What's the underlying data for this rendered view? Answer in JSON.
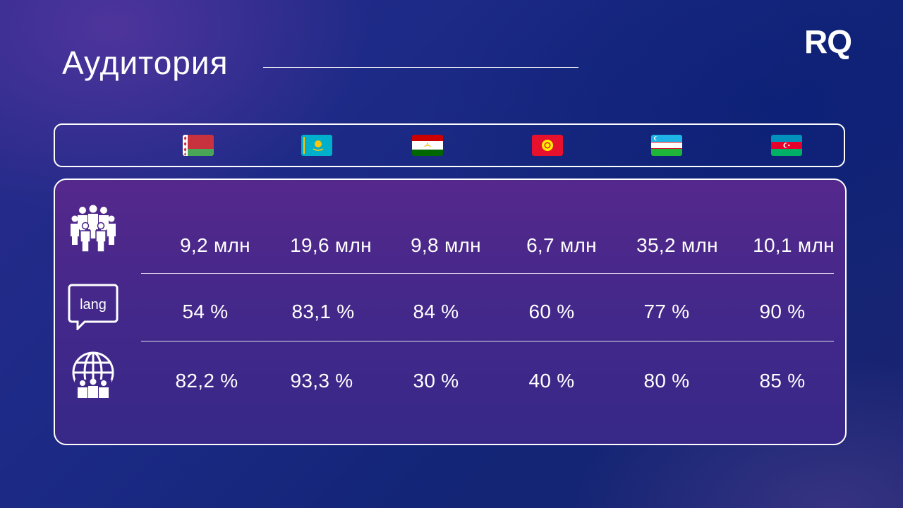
{
  "slide": {
    "title": "Аудитория",
    "logo": "RQ"
  },
  "flags": [
    {
      "name": "belarus-flag-icon"
    },
    {
      "name": "kazakhstan-flag-icon"
    },
    {
      "name": "tajikistan-flag-icon"
    },
    {
      "name": "kyrgyzstan-flag-icon"
    },
    {
      "name": "uzbekistan-flag-icon"
    },
    {
      "name": "azerbaijan-flag-icon"
    }
  ],
  "rows": {
    "population": {
      "icon": "people-group-icon",
      "values": [
        "9,2 млн",
        "19,6 млн",
        "9,8 млн",
        "6,7 млн",
        "35,2 млн",
        "10,1 млн"
      ]
    },
    "language": {
      "icon": "speech-bubble-icon",
      "icon_text": "lang",
      "values": [
        "54 %",
        "83,1 %",
        "84 %",
        "60 %",
        "77 %",
        "90 %"
      ]
    },
    "internet": {
      "icon": "globe-people-icon",
      "values": [
        "82,2 %",
        "93,3 %",
        "30 %",
        "40 %",
        "80 %",
        "85 %"
      ]
    }
  }
}
